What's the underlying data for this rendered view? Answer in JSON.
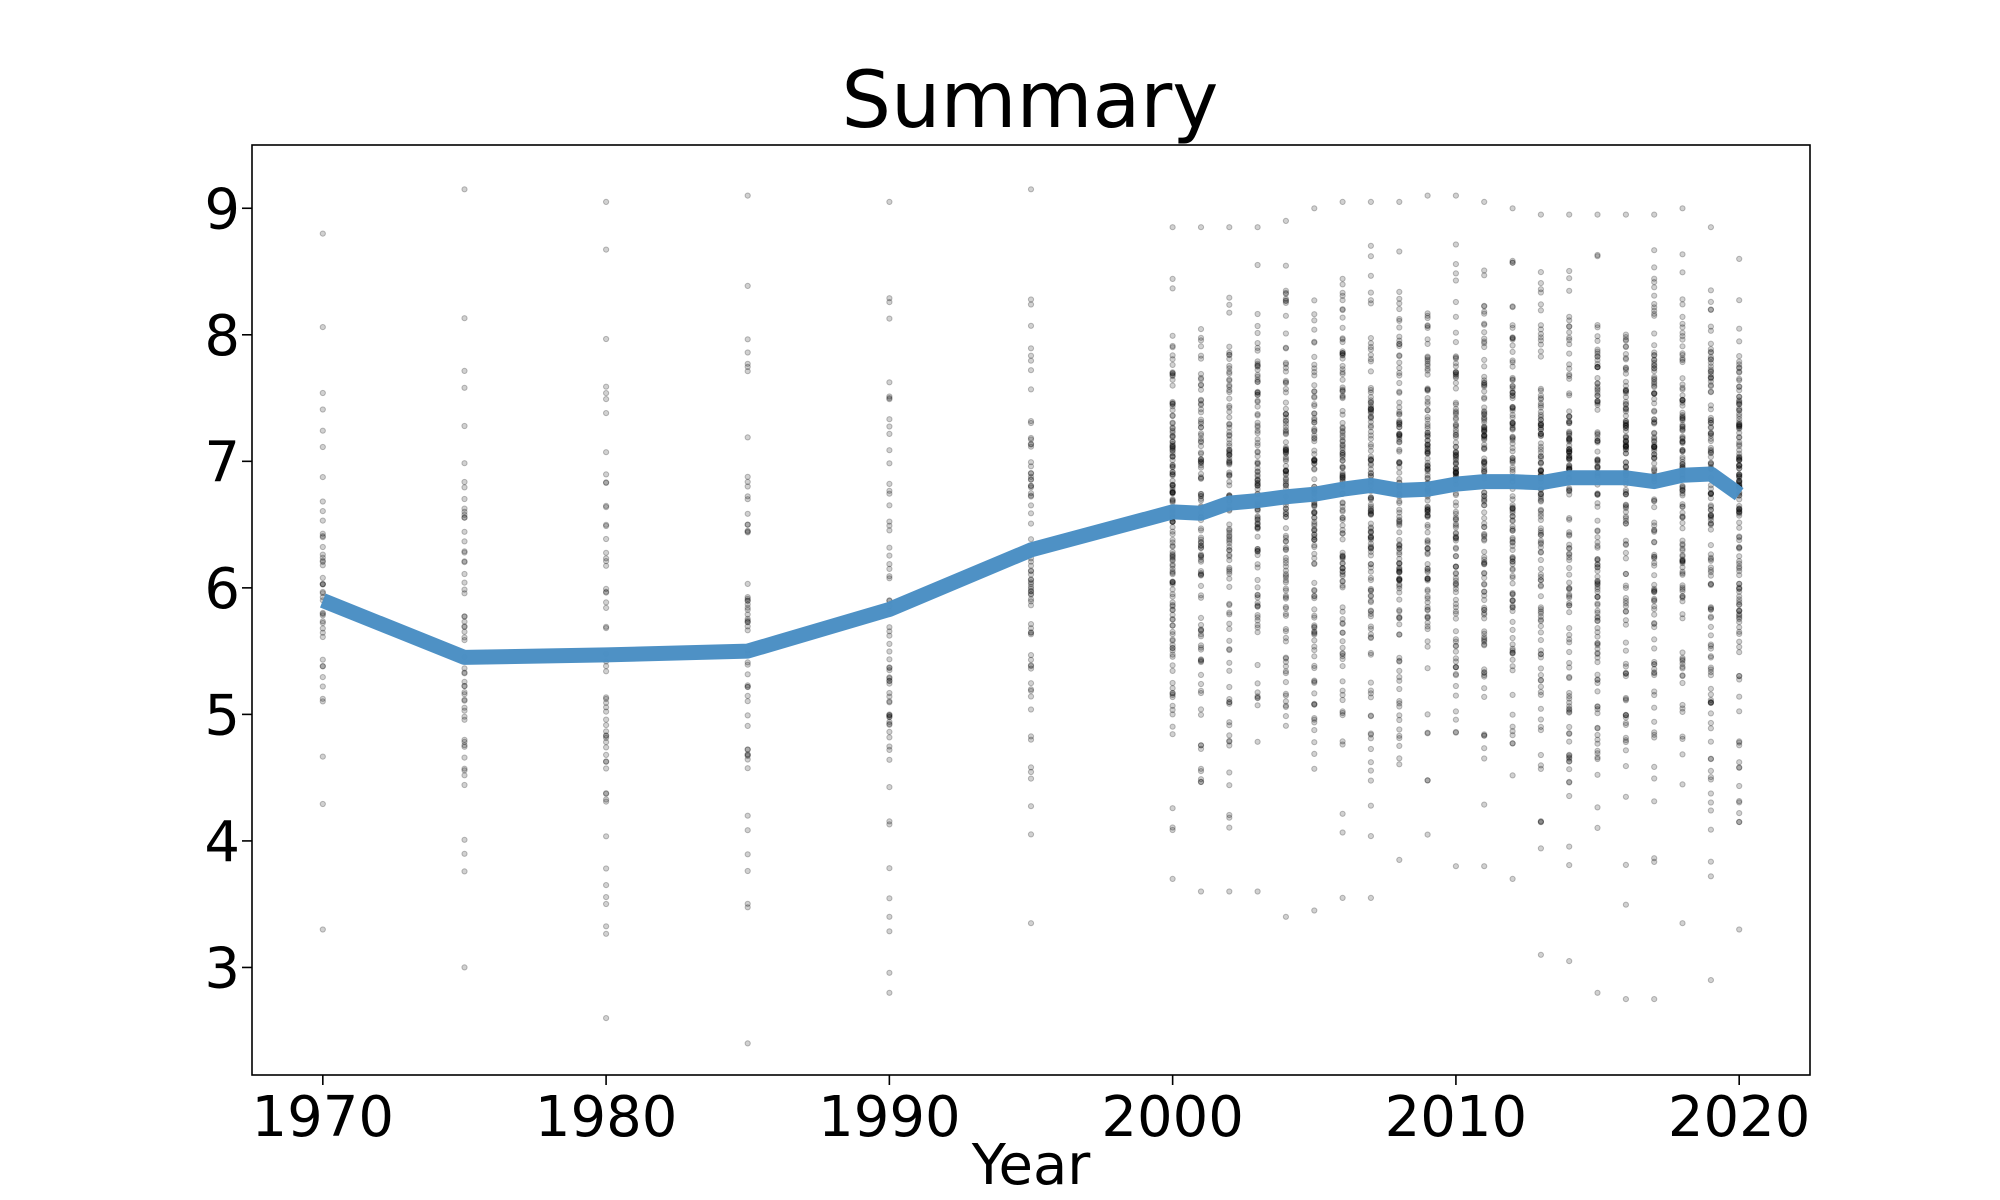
{
  "chart_data": {
    "type": "line",
    "title": "Summary",
    "xlabel": "Year",
    "ylabel": "",
    "xlim": [
      1967.5,
      2022.5
    ],
    "ylim": [
      2.15,
      9.5
    ],
    "xticks": [
      "1970",
      "1980",
      "1990",
      "2000",
      "2010",
      "2020"
    ],
    "yticks": [
      "3",
      "4",
      "5",
      "6",
      "7",
      "8",
      "9"
    ],
    "grid": false,
    "legend": "none",
    "colors": {
      "line": "#4a8fc4",
      "points": "#000000",
      "frame": "#000000"
    },
    "series": [
      {
        "x": [
          1970,
          1975,
          1980,
          1985,
          1990,
          1995,
          2000,
          2001,
          2002,
          2003,
          2004,
          2005,
          2006,
          2007,
          2008,
          2009,
          2010,
          2011,
          2012,
          2013,
          2014,
          2015,
          2016,
          2017,
          2018,
          2019,
          2020
        ],
        "y": [
          5.9,
          5.45,
          5.47,
          5.5,
          5.83,
          6.3,
          6.6,
          6.59,
          6.67,
          6.69,
          6.72,
          6.74,
          6.78,
          6.81,
          6.77,
          6.78,
          6.82,
          6.84,
          6.84,
          6.83,
          6.87,
          6.87,
          6.87,
          6.84,
          6.89,
          6.9,
          6.74
        ]
      }
    ],
    "scatter": {
      "years": [
        1970,
        1975,
        1980,
        1985,
        1990,
        1995,
        2000,
        2001,
        2002,
        2003,
        2004,
        2005,
        2006,
        2007,
        2008,
        2009,
        2010,
        2011,
        2012,
        2013,
        2014,
        2015,
        2016,
        2017,
        2018,
        2019,
        2020
      ],
      "min": [
        3.3,
        3.0,
        2.6,
        2.4,
        2.8,
        3.35,
        3.7,
        3.6,
        3.6,
        3.6,
        3.4,
        3.45,
        3.55,
        3.55,
        3.85,
        4.05,
        3.8,
        3.8,
        3.7,
        3.1,
        3.05,
        2.8,
        2.75,
        2.75,
        3.35,
        2.9,
        3.3
      ],
      "max": [
        8.8,
        9.15,
        9.05,
        9.1,
        9.05,
        9.15,
        8.85,
        8.85,
        8.85,
        8.85,
        8.9,
        9.0,
        9.05,
        9.05,
        9.05,
        9.1,
        9.1,
        9.05,
        9.0,
        8.95,
        8.95,
        8.95,
        8.95,
        8.95,
        9.0,
        8.85,
        8.6
      ],
      "count": [
        45,
        60,
        60,
        60,
        70,
        75,
        150,
        110,
        110,
        110,
        120,
        120,
        130,
        130,
        130,
        130,
        130,
        130,
        130,
        130,
        130,
        130,
        130,
        130,
        130,
        130,
        150
      ]
    }
  }
}
